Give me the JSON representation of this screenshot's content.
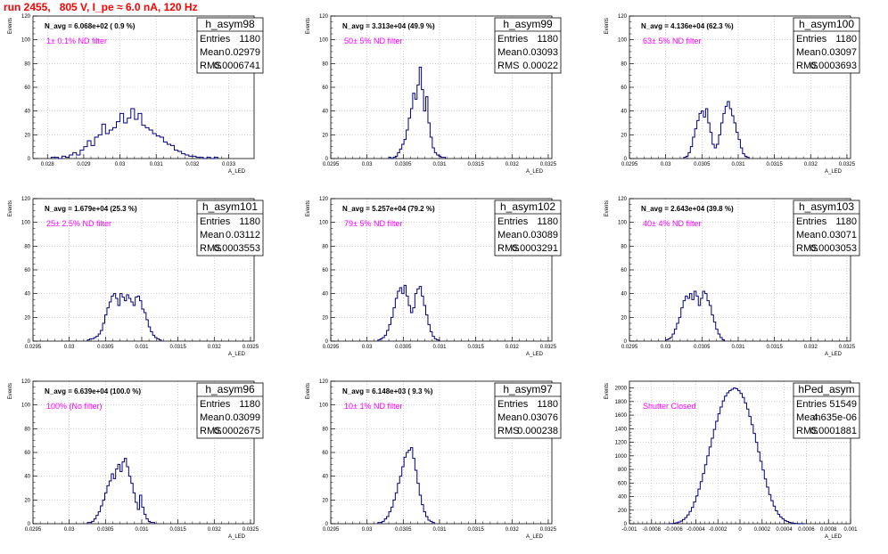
{
  "canvas_title": "run 2455,   805 V, I_pe ≈ 6.0 nA, 120 Hz",
  "colors": {
    "title": "#ff0000",
    "histogram": "#000080",
    "filter_text": "#ff00ff",
    "grid": "#b0b0b0"
  },
  "axis": {
    "ylabel": "Events",
    "xlabel": "A_LED"
  },
  "chart_data": [
    {
      "type": "histogram",
      "name": "h_asym98",
      "navg": "N_avg = 6.068e+02 ( 0.9 %)",
      "filter": "1± 0.1% ND filter",
      "stats": {
        "entries": "1180",
        "mean": "0.02979",
        "rms": "0.0006741"
      },
      "xlim": [
        0.0276,
        0.0337
      ],
      "ylim": [
        0,
        120
      ],
      "xticks": [
        0.028,
        0.029,
        0.03,
        0.031,
        0.032,
        0.033
      ],
      "xtick_labels": [
        "0.028",
        "0.029",
        "0.03",
        "0.031",
        "0.032",
        "0.033"
      ],
      "yticks": [
        0,
        20,
        40,
        60,
        80,
        100,
        120
      ],
      "grid": true,
      "bins": {
        "x0": 0.0281,
        "width": 0.0001,
        "counts": [
          1,
          1,
          0,
          2,
          1,
          3,
          5,
          3,
          7,
          10,
          15,
          11,
          18,
          20,
          29,
          21,
          24,
          26,
          31,
          38,
          30,
          34,
          42,
          33,
          38,
          28,
          26,
          24,
          21,
          19,
          18,
          14,
          12,
          11,
          7,
          6,
          4,
          3,
          2,
          2,
          1,
          1,
          0,
          1,
          0,
          1
        ]
      }
    },
    {
      "type": "histogram",
      "name": "h_asym99",
      "navg": "N_avg = 3.313e+04 (49.9 %)",
      "filter": "50± 5% ND filter",
      "stats": {
        "entries": "1180",
        "mean": "0.03093",
        "rms": "0.00022"
      },
      "xlim": [
        0.0295,
        0.03255
      ],
      "ylim": [
        0,
        120
      ],
      "xticks": [
        0.0295,
        0.03,
        0.0305,
        0.031,
        0.0315,
        0.032,
        0.0325
      ],
      "xtick_labels": [
        "0.0295",
        "0.03",
        "0.0305",
        "0.031",
        "0.0315",
        "0.032",
        "0.0325"
      ],
      "yticks": [
        0,
        20,
        40,
        60,
        80,
        100,
        120
      ],
      "grid": true,
      "bins": {
        "x0": 0.0303,
        "width": 3e-05,
        "counts": [
          1,
          0,
          1,
          2,
          5,
          8,
          12,
          16,
          24,
          34,
          42,
          55,
          50,
          62,
          77,
          58,
          40,
          52,
          30,
          18,
          9,
          5,
          3,
          2,
          1,
          1
        ]
      }
    },
    {
      "type": "histogram",
      "name": "h_asym100",
      "navg": "N_avg = 4.136e+04 (62.3 %)",
      "filter": "63± 5% ND filter",
      "stats": {
        "entries": "1180",
        "mean": "0.03097",
        "rms": "0.0003693"
      },
      "xlim": [
        0.0295,
        0.03255
      ],
      "ylim": [
        0,
        120
      ],
      "xticks": [
        0.0295,
        0.03,
        0.0305,
        0.031,
        0.0315,
        0.032,
        0.0325
      ],
      "xtick_labels": [
        "0.0295",
        "0.03",
        "0.0305",
        "0.031",
        "0.0315",
        "0.032",
        "0.0325"
      ],
      "yticks": [
        0,
        20,
        40,
        60,
        80,
        100,
        120
      ],
      "grid": true,
      "bins": {
        "x0": 0.03025,
        "width": 3e-05,
        "counts": [
          1,
          2,
          5,
          10,
          18,
          25,
          32,
          38,
          40,
          35,
          42,
          30,
          22,
          12,
          9,
          12,
          20,
          30,
          38,
          44,
          48,
          42,
          36,
          30,
          22,
          16,
          9,
          4,
          2,
          1
        ]
      }
    },
    {
      "type": "histogram",
      "name": "h_asym101",
      "navg": "N_avg = 1.679e+04 (25.3 %)",
      "filter": "25± 2.5% ND filter",
      "stats": {
        "entries": "1180",
        "mean": "0.03112",
        "rms": "0.0003553"
      },
      "xlim": [
        0.0295,
        0.03255
      ],
      "ylim": [
        0,
        120
      ],
      "xticks": [
        0.0295,
        0.03,
        0.0305,
        0.031,
        0.0315,
        0.032,
        0.0325
      ],
      "xtick_labels": [
        "0.0295",
        "0.03",
        "0.0305",
        "0.031",
        "0.0315",
        "0.032",
        "0.0325"
      ],
      "yticks": [
        0,
        20,
        40,
        60,
        80,
        100,
        120
      ],
      "grid": true,
      "bins": {
        "x0": 0.03025,
        "width": 3e-05,
        "counts": [
          1,
          2,
          2,
          3,
          4,
          6,
          9,
          15,
          22,
          28,
          33,
          38,
          40,
          36,
          30,
          40,
          37,
          34,
          39,
          36,
          33,
          30,
          37,
          38,
          34,
          27,
          24,
          18,
          12,
          8,
          5,
          3,
          2,
          1
        ]
      }
    },
    {
      "type": "histogram",
      "name": "h_asym102",
      "navg": "N_avg = 5.257e+04 (79.2 %)",
      "filter": "79± 5% ND filter",
      "stats": {
        "entries": "1180",
        "mean": "0.03089",
        "rms": "0.0003291"
      },
      "xlim": [
        0.0295,
        0.03255
      ],
      "ylim": [
        0,
        120
      ],
      "xticks": [
        0.0295,
        0.03,
        0.0305,
        0.031,
        0.0315,
        0.032,
        0.0325
      ],
      "xtick_labels": [
        "0.0295",
        "0.03",
        "0.0305",
        "0.031",
        "0.0315",
        "0.032",
        "0.0325"
      ],
      "yticks": [
        0,
        20,
        40,
        60,
        80,
        100,
        120
      ],
      "grid": true,
      "bins": {
        "x0": 0.03015,
        "width": 3e-05,
        "counts": [
          1,
          2,
          3,
          5,
          9,
          14,
          20,
          28,
          36,
          42,
          45,
          40,
          47,
          38,
          30,
          24,
          28,
          40,
          44,
          46,
          38,
          30,
          22,
          14,
          8,
          4,
          2,
          1
        ]
      }
    },
    {
      "type": "histogram",
      "name": "h_asym103",
      "navg": "N_avg = 2.643e+04 (39.8 %)",
      "filter": "40± 4% ND filter",
      "stats": {
        "entries": "1180",
        "mean": "0.03071",
        "rms": "0.0003053"
      },
      "xlim": [
        0.0295,
        0.03255
      ],
      "ylim": [
        0,
        120
      ],
      "xticks": [
        0.0295,
        0.03,
        0.0305,
        0.031,
        0.0315,
        0.032,
        0.0325
      ],
      "xtick_labels": [
        "0.0295",
        "0.03",
        "0.0305",
        "0.031",
        "0.0315",
        "0.032",
        "0.0325"
      ],
      "yticks": [
        0,
        20,
        40,
        60,
        80,
        100,
        120
      ],
      "grid": true,
      "bins": {
        "x0": 0.03,
        "width": 3e-05,
        "counts": [
          1,
          2,
          3,
          6,
          10,
          15,
          20,
          28,
          34,
          38,
          36,
          40,
          35,
          42,
          38,
          30,
          36,
          42,
          40,
          34,
          30,
          22,
          16,
          10,
          6,
          3,
          1
        ]
      }
    },
    {
      "type": "histogram",
      "name": "h_asym96",
      "navg": "N_avg = 6.639e+04 (100.0 %)",
      "filter": "100% (No filter)",
      "stats": {
        "entries": "1180",
        "mean": "0.03099",
        "rms": "0.0002675"
      },
      "xlim": [
        0.0295,
        0.03255
      ],
      "ylim": [
        0,
        120
      ],
      "xticks": [
        0.0295,
        0.03,
        0.0305,
        0.031,
        0.0315,
        0.032,
        0.0325
      ],
      "xtick_labels": [
        "0.0295",
        "0.03",
        "0.0305",
        "0.031",
        "0.0315",
        "0.032",
        "0.0325"
      ],
      "yticks": [
        0,
        20,
        40,
        60,
        80,
        100,
        120
      ],
      "grid": true,
      "bins": {
        "x0": 0.03025,
        "width": 3e-05,
        "counts": [
          1,
          1,
          2,
          4,
          7,
          10,
          15,
          20,
          26,
          32,
          36,
          42,
          38,
          46,
          50,
          44,
          52,
          55,
          48,
          40,
          34,
          26,
          18,
          12,
          24,
          14,
          8,
          4,
          2,
          1,
          1
        ]
      }
    },
    {
      "type": "histogram",
      "name": "h_asym97",
      "navg": "N_avg = 6.148e+03 ( 9.3 %)",
      "filter": "10± 1% ND filter",
      "stats": {
        "entries": "1180",
        "mean": "0.03076",
        "rms": "0.000238"
      },
      "xlim": [
        0.0295,
        0.03255
      ],
      "ylim": [
        0,
        120
      ],
      "xticks": [
        0.0295,
        0.03,
        0.0305,
        0.031,
        0.0315,
        0.032,
        0.0325
      ],
      "xtick_labels": [
        "0.0295",
        "0.03",
        "0.0305",
        "0.031",
        "0.0315",
        "0.032",
        "0.0325"
      ],
      "yticks": [
        0,
        20,
        40,
        60,
        80,
        100,
        120
      ],
      "grid": true,
      "bins": {
        "x0": 0.03015,
        "width": 3e-05,
        "counts": [
          1,
          1,
          2,
          4,
          6,
          10,
          14,
          20,
          26,
          34,
          40,
          48,
          56,
          60,
          62,
          64,
          55,
          45,
          34,
          24,
          16,
          10,
          6,
          3,
          2,
          1
        ]
      }
    },
    {
      "type": "histogram",
      "name": "hPed_asym",
      "navg": "",
      "filter": "Shutter Closed",
      "stats": {
        "entries": "51549",
        "mean": "4.635e-06",
        "rms": "0.0001881"
      },
      "xlim": [
        -0.001,
        0.001
      ],
      "ylim": [
        0,
        2100
      ],
      "xticks": [
        -0.001,
        -0.0008,
        -0.0006,
        -0.0004,
        -0.0002,
        0,
        0.0002,
        0.0004,
        0.0006,
        0.0008,
        0.001
      ],
      "xtick_labels": [
        "-0.001",
        "-0.0008",
        "-0.0006",
        "-0.0004",
        "-0.0002",
        "0",
        "0.0002",
        "0.0004",
        "0.0006",
        "0.0008",
        "0.001"
      ],
      "yticks": [
        0,
        200,
        400,
        600,
        800,
        1000,
        1200,
        1400,
        1600,
        1800,
        2000
      ],
      "grid": true,
      "bins": {
        "x0": -0.00064,
        "width": 2e-05,
        "counts": [
          2,
          4,
          8,
          15,
          25,
          40,
          60,
          90,
          130,
          180,
          240,
          320,
          410,
          510,
          620,
          740,
          870,
          1000,
          1130,
          1260,
          1390,
          1510,
          1620,
          1720,
          1810,
          1880,
          1930,
          1960,
          1980,
          2000,
          1990,
          1960,
          1920,
          1860,
          1780,
          1690,
          1580,
          1460,
          1330,
          1200,
          1060,
          920,
          790,
          660,
          540,
          430,
          340,
          260,
          190,
          140,
          100,
          70,
          48,
          32,
          20,
          12,
          7,
          4,
          2,
          1,
          1
        ]
      }
    }
  ]
}
